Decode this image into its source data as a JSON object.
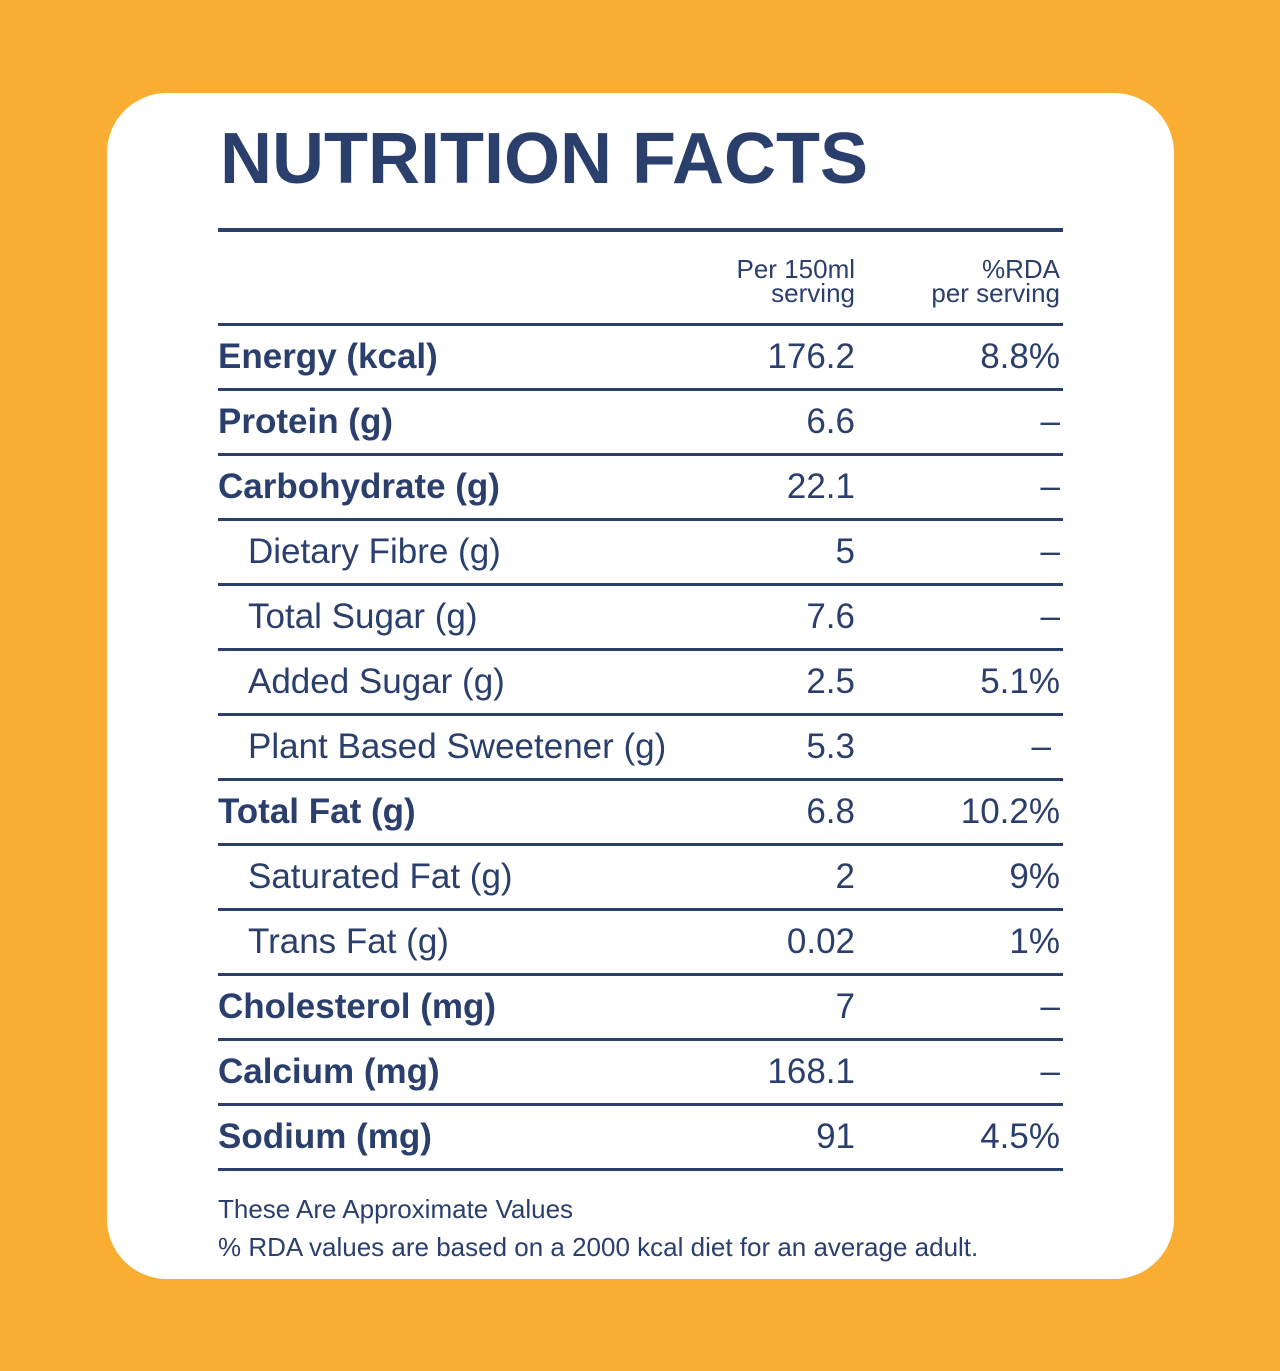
{
  "colors": {
    "background": "#F9AE33",
    "card": "#FFFFFF",
    "text": "#2B3F6C"
  },
  "title": "NUTRITION FACTS",
  "header": {
    "col1": [
      "Per 150ml",
      "serving"
    ],
    "col2": [
      "%RDA",
      "per serving"
    ]
  },
  "rows": [
    {
      "name": "Energy (kcal)",
      "value": "176.2",
      "rda": "8.8%",
      "level": "main"
    },
    {
      "name": "Protein (g)",
      "value": "6.6",
      "rda": "–",
      "level": "main"
    },
    {
      "name": "Carbohydrate (g)",
      "value": "22.1",
      "rda": "–",
      "level": "main"
    },
    {
      "name": "Dietary Fibre (g)",
      "value": "5",
      "rda": "–",
      "level": "sub"
    },
    {
      "name": "Total Sugar (g)",
      "value": "7.6",
      "rda": "–",
      "level": "sub"
    },
    {
      "name": "Added Sugar (g)",
      "value": "2.5",
      "rda": "5.1%",
      "level": "sub"
    },
    {
      "name": "Plant Based Sweetener (g)",
      "value": "5.3",
      "rda": "–",
      "level": "sub"
    },
    {
      "name": "Total Fat (g)",
      "value": "6.8",
      "rda": "10.2%",
      "level": "main"
    },
    {
      "name": "Saturated Fat (g)",
      "value": "2",
      "rda": "9%",
      "level": "sub"
    },
    {
      "name": "Trans Fat (g)",
      "value": "0.02",
      "rda": "1%",
      "level": "sub"
    },
    {
      "name": "Cholesterol (mg)",
      "value": "7",
      "rda": "–",
      "level": "main"
    },
    {
      "name": "Calcium (mg)",
      "value": "168.1",
      "rda": "–",
      "level": "main"
    },
    {
      "name": "Sodium (mg)",
      "value": "91",
      "rda": "4.5%",
      "level": "main"
    }
  ],
  "notes": [
    "These Are Approximate Values",
    "% RDA values are based on a 2000 kcal diet for an average adult."
  ]
}
